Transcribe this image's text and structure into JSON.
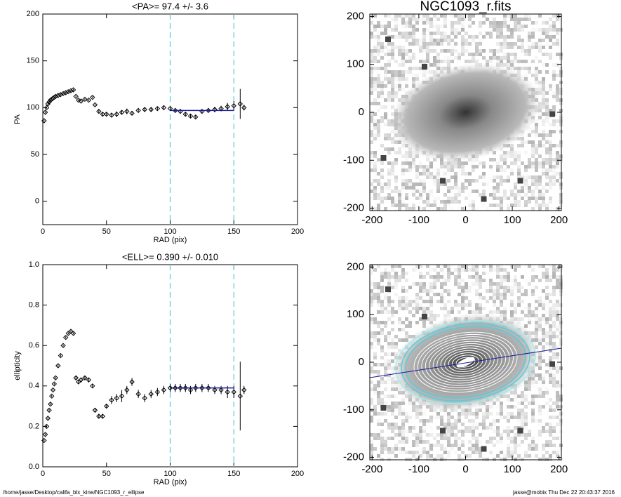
{
  "chart_data": [
    {
      "type": "scatter",
      "title": "<PA>=  97.4 +/-   3.6",
      "xlabel": "RAD (pix)",
      "ylabel": "PA",
      "xlim": [
        0,
        200
      ],
      "ylim": [
        -25,
        200
      ],
      "xticks": [
        0,
        50,
        100,
        150,
        200
      ],
      "yticks": [
        0,
        50,
        100,
        150,
        200
      ],
      "x": [
        1,
        2,
        3,
        4,
        5,
        6,
        7,
        8,
        9,
        10,
        12,
        14,
        16,
        18,
        20,
        22,
        24,
        26,
        28,
        30,
        33,
        36,
        39,
        41,
        44,
        47,
        50,
        54,
        58,
        62,
        66,
        70,
        75,
        80,
        85,
        90,
        95,
        100,
        104,
        108,
        112,
        116,
        120,
        125,
        130,
        135,
        140,
        145,
        150,
        155,
        158
      ],
      "values": [
        86,
        95,
        100,
        104,
        106,
        108,
        109,
        110,
        111,
        112,
        113,
        114,
        115,
        116,
        117,
        118,
        119,
        112,
        108,
        107,
        109,
        108,
        111,
        103,
        96,
        93,
        93,
        92,
        93,
        95,
        96,
        94,
        97,
        98,
        98,
        99,
        100,
        99,
        97,
        96,
        93,
        91,
        90,
        96,
        97,
        98,
        99,
        101,
        102,
        104,
        100
      ],
      "errors": [
        1,
        1,
        1,
        1,
        1,
        1,
        1,
        1,
        1,
        1,
        1,
        1,
        1,
        1,
        1,
        1,
        1,
        1,
        1,
        1,
        1,
        1,
        1,
        1,
        2,
        2,
        2,
        2,
        3,
        2,
        3,
        2,
        2,
        2,
        2,
        2,
        2,
        2,
        2,
        2,
        2,
        2,
        2,
        2,
        2,
        3,
        3,
        4,
        5,
        16,
        3
      ],
      "color": "#000000",
      "vlines": [
        100,
        150
      ],
      "vline_color": "#5bc8d8",
      "fit": {
        "x": [
          100,
          150
        ],
        "values": [
          97,
          97
        ],
        "color": "#1a1a9a"
      }
    },
    {
      "type": "image",
      "title": "NGC1093_r.fits",
      "xlim": [
        -205,
        205
      ],
      "ylim": [
        -205,
        205
      ],
      "xticks": [
        -200,
        -100,
        0,
        100,
        200
      ],
      "yticks": [
        -200,
        -100,
        0,
        100,
        200
      ],
      "contours": false
    },
    {
      "type": "scatter",
      "title": "<ELL>= 0.390 +/-  0.010",
      "xlabel": "RAD (pix)",
      "ylabel": "ellipticity",
      "xlim": [
        0,
        200
      ],
      "ylim": [
        0,
        1
      ],
      "xticks": [
        0,
        50,
        100,
        150,
        200
      ],
      "yticks": [
        {
          "value": 0,
          "label": "0.0"
        },
        0.2,
        0.4,
        0.6,
        0.8,
        {
          "value": 1,
          "label": "1.0"
        }
      ],
      "x": [
        1,
        2,
        3,
        4,
        5,
        6,
        7,
        8,
        9,
        10,
        12,
        14,
        16,
        18,
        20,
        22,
        24,
        26,
        28,
        30,
        33,
        36,
        39,
        41,
        44,
        47,
        50,
        54,
        58,
        62,
        66,
        70,
        75,
        80,
        85,
        90,
        95,
        100,
        104,
        108,
        112,
        116,
        120,
        125,
        130,
        135,
        140,
        145,
        150,
        155,
        158
      ],
      "values": [
        0.13,
        0.16,
        0.2,
        0.24,
        0.28,
        0.31,
        0.35,
        0.38,
        0.41,
        0.44,
        0.5,
        0.55,
        0.6,
        0.64,
        0.66,
        0.67,
        0.66,
        0.44,
        0.42,
        0.43,
        0.44,
        0.43,
        0.4,
        0.28,
        0.25,
        0.25,
        0.3,
        0.33,
        0.34,
        0.35,
        0.38,
        0.42,
        0.36,
        0.34,
        0.36,
        0.37,
        0.38,
        0.39,
        0.39,
        0.39,
        0.39,
        0.38,
        0.39,
        0.39,
        0.39,
        0.38,
        0.38,
        0.37,
        0.37,
        0.35,
        0.38
      ],
      "errors": [
        0.005,
        0.005,
        0.005,
        0.005,
        0.005,
        0.005,
        0.005,
        0.005,
        0.005,
        0.005,
        0.005,
        0.005,
        0.005,
        0.005,
        0.005,
        0.005,
        0.005,
        0.01,
        0.01,
        0.01,
        0.01,
        0.01,
        0.01,
        0.01,
        0.01,
        0.01,
        0.01,
        0.02,
        0.02,
        0.03,
        0.02,
        0.02,
        0.02,
        0.02,
        0.02,
        0.02,
        0.02,
        0.02,
        0.02,
        0.02,
        0.02,
        0.02,
        0.02,
        0.02,
        0.02,
        0.02,
        0.02,
        0.03,
        0.03,
        0.17,
        0.02
      ],
      "color": "#000000",
      "vlines": [
        100,
        150
      ],
      "vline_color": "#5bc8d8",
      "fit": {
        "x": [
          100,
          150
        ],
        "values": [
          0.39,
          0.39
        ],
        "color": "#1a1a9a"
      }
    },
    {
      "type": "image",
      "xlim": [
        -205,
        205
      ],
      "ylim": [
        -205,
        205
      ],
      "xticks": [
        -200,
        -100,
        0,
        100,
        200
      ],
      "yticks": [
        -200,
        -100,
        0,
        100,
        200
      ],
      "contours": true
    }
  ],
  "footer": {
    "left": "/home/jasse/Desktop/califa_blx_kine/NGC1093_r_ellipse",
    "right": "jasse@mobix  Thu Dec 22 20:43:37 2016"
  }
}
